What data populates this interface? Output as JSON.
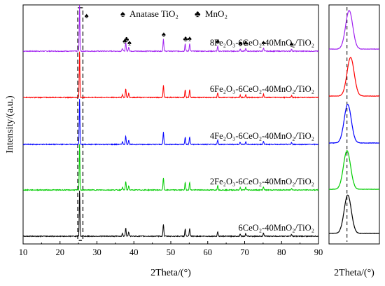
{
  "chart_data": [
    {
      "type": "line",
      "xlabel": "2Theta/(°)",
      "ylabel": "Intensity/(a.u.)",
      "xlim": [
        10,
        90
      ],
      "xticks": [
        10,
        20,
        30,
        40,
        50,
        60,
        70,
        80,
        90
      ],
      "legend": [
        {
          "symbol": "♠",
          "label": "Anatase TiO₂"
        },
        {
          "symbol": "♣",
          "label": "MnO₂"
        }
      ],
      "peak_markers": [
        {
          "symbol": "♠",
          "x": 27.2,
          "series": "8Fe₂O₃-6CeO₂-40MnO₂/TiO₂"
        },
        {
          "symbol": "♠",
          "x": 37.5,
          "series": "8Fe₂O₃-6CeO₂-40MnO₂/TiO₂"
        },
        {
          "symbol": "♣",
          "x": 38.0,
          "series": "8Fe₂O₃-6CeO₂-40MnO₂/TiO₂"
        },
        {
          "symbol": "♠",
          "x": 38.8,
          "series": "8Fe₂O₃-6CeO₂-40MnO₂/TiO₂"
        },
        {
          "symbol": "♠",
          "x": 48.1,
          "series": "8Fe₂O₃-6CeO₂-40MnO₂/TiO₂"
        },
        {
          "symbol": "♣",
          "x": 54.0,
          "series": "8Fe₂O₃-6CeO₂-40MnO₂/TiO₂"
        },
        {
          "symbol": "♠",
          "x": 55.1,
          "series": "8Fe₂O₃-6CeO₂-40MnO₂/TiO₂"
        },
        {
          "symbol": "♠",
          "x": 62.7,
          "series": "8Fe₂O₃-6CeO₂-40MnO₂/TiO₂"
        },
        {
          "symbol": "♠",
          "x": 68.8,
          "series": "8Fe₂O₃-6CeO₂-40MnO₂/TiO₂"
        },
        {
          "symbol": "♣",
          "x": 70.3,
          "series": "8Fe₂O₃-6CeO₂-40MnO₂/TiO₂"
        },
        {
          "symbol": "♠",
          "x": 75.1,
          "series": "8Fe₂O₃-6CeO₂-40MnO₂/TiO₂"
        },
        {
          "symbol": "♠",
          "x": 82.7,
          "series": "8Fe₂O₃-6CeO₂-40MnO₂/TiO₂"
        }
      ],
      "highlight_region": [
        24.8,
        26.2
      ],
      "series": [
        {
          "name": "8Fe₂O₃-6CeO₂-40MnO₂/TiO₂",
          "color": "#a020f0",
          "peaks": [
            {
              "x": 25.3,
              "h": 10
            },
            {
              "x": 36.9,
              "h": 0.6
            },
            {
              "x": 37.8,
              "h": 1.8
            },
            {
              "x": 38.6,
              "h": 0.9
            },
            {
              "x": 48.0,
              "h": 2.6
            },
            {
              "x": 53.9,
              "h": 1.6
            },
            {
              "x": 55.1,
              "h": 1.6
            },
            {
              "x": 62.7,
              "h": 1.0
            },
            {
              "x": 68.8,
              "h": 0.5
            },
            {
              "x": 70.3,
              "h": 0.6
            },
            {
              "x": 75.1,
              "h": 0.7
            },
            {
              "x": 82.7,
              "h": 0.4
            }
          ]
        },
        {
          "name": "6Fe₂O₃-6CeO₂-40MnO₂/TiO₂",
          "color": "#ff0000",
          "peaks": [
            {
              "x": 25.3,
              "h": 10
            },
            {
              "x": 36.9,
              "h": 0.6
            },
            {
              "x": 37.8,
              "h": 1.8
            },
            {
              "x": 38.6,
              "h": 0.9
            },
            {
              "x": 48.0,
              "h": 2.6
            },
            {
              "x": 53.9,
              "h": 1.6
            },
            {
              "x": 55.1,
              "h": 1.6
            },
            {
              "x": 62.7,
              "h": 1.0
            },
            {
              "x": 68.8,
              "h": 0.5
            },
            {
              "x": 70.3,
              "h": 0.6
            },
            {
              "x": 75.1,
              "h": 0.7
            },
            {
              "x": 82.7,
              "h": 0.4
            }
          ]
        },
        {
          "name": "4Fe₂O₃-6CeO₂-40MnO₂/TiO₂",
          "color": "#0000ff",
          "peaks": [
            {
              "x": 25.3,
              "h": 10
            },
            {
              "x": 36.9,
              "h": 0.6
            },
            {
              "x": 37.8,
              "h": 1.8
            },
            {
              "x": 38.6,
              "h": 0.9
            },
            {
              "x": 48.0,
              "h": 2.6
            },
            {
              "x": 53.9,
              "h": 1.6
            },
            {
              "x": 55.1,
              "h": 1.6
            },
            {
              "x": 62.7,
              "h": 1.0
            },
            {
              "x": 68.8,
              "h": 0.5
            },
            {
              "x": 70.3,
              "h": 0.6
            },
            {
              "x": 75.1,
              "h": 0.7
            },
            {
              "x": 82.7,
              "h": 0.4
            }
          ]
        },
        {
          "name": "2Fe₂O₃-6CeO₂-40MnO₂/TiO₂",
          "color": "#00cc00",
          "peaks": [
            {
              "x": 25.3,
              "h": 10
            },
            {
              "x": 36.9,
              "h": 0.6
            },
            {
              "x": 37.8,
              "h": 1.8
            },
            {
              "x": 38.6,
              "h": 0.9
            },
            {
              "x": 48.0,
              "h": 2.6
            },
            {
              "x": 53.9,
              "h": 1.6
            },
            {
              "x": 55.1,
              "h": 1.6
            },
            {
              "x": 62.7,
              "h": 1.0
            },
            {
              "x": 68.8,
              "h": 0.5
            },
            {
              "x": 70.3,
              "h": 0.6
            },
            {
              "x": 75.1,
              "h": 0.7
            },
            {
              "x": 82.7,
              "h": 0.4
            }
          ]
        },
        {
          "name": "6CeO₂-40MnO₂/TiO₂",
          "color": "#000000",
          "peaks": [
            {
              "x": 25.3,
              "h": 10
            },
            {
              "x": 36.9,
              "h": 0.6
            },
            {
              "x": 37.8,
              "h": 1.8
            },
            {
              "x": 38.6,
              "h": 0.9
            },
            {
              "x": 48.0,
              "h": 2.6
            },
            {
              "x": 53.9,
              "h": 1.6
            },
            {
              "x": 55.1,
              "h": 1.6
            },
            {
              "x": 62.7,
              "h": 1.0
            },
            {
              "x": 68.8,
              "h": 0.5
            },
            {
              "x": 70.3,
              "h": 0.6
            },
            {
              "x": 75.1,
              "h": 0.7
            },
            {
              "x": 82.7,
              "h": 0.4
            }
          ]
        }
      ]
    },
    {
      "type": "line",
      "xlabel": "2Theta/(°)",
      "xlim": [
        24.8,
        26.2
      ],
      "reference_line_x": 25.3,
      "series": [
        {
          "name": "8Fe₂O₃-6CeO₂-40MnO₂/TiO₂",
          "color": "#a020f0",
          "peak_x": 25.36
        },
        {
          "name": "6Fe₂O₃-6CeO₂-40MnO₂/TiO₂",
          "color": "#ff0000",
          "peak_x": 25.4
        },
        {
          "name": "4Fe₂O₃-6CeO₂-40MnO₂/TiO₂",
          "color": "#0000ff",
          "peak_x": 25.32
        },
        {
          "name": "2Fe₂O₃-6CeO₂-40MnO₂/TiO₂",
          "color": "#00cc00",
          "peak_x": 25.3
        },
        {
          "name": "6CeO₂-40MnO₂/TiO₂",
          "color": "#000000",
          "peak_x": 25.32
        }
      ]
    }
  ]
}
